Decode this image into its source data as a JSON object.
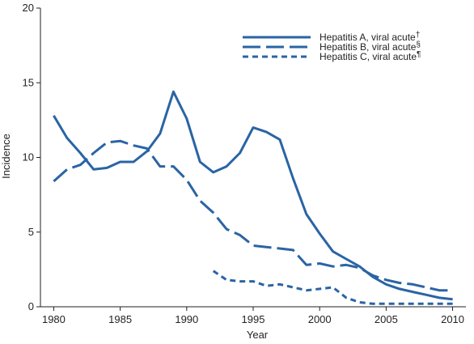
{
  "chart_data": {
    "type": "line",
    "title": "",
    "xlabel": "Year",
    "ylabel": "Incidence",
    "xlim": [
      1979,
      2011
    ],
    "ylim": [
      0,
      20
    ],
    "x_ticks": [
      1980,
      1985,
      1990,
      1995,
      2000,
      2005,
      2010
    ],
    "y_ticks": [
      0,
      5,
      10,
      15,
      20
    ],
    "grid": false,
    "legend_position": "top-right",
    "line_color": "#2a64a4",
    "axis_color": "#231f20",
    "series": [
      {
        "name": "Hepatitis A, viral acute",
        "marker": "†",
        "style": "solid",
        "x": [
          1980,
          1981,
          1982,
          1983,
          1984,
          1985,
          1986,
          1987,
          1988,
          1989,
          1990,
          1991,
          1992,
          1993,
          1994,
          1995,
          1996,
          1997,
          1998,
          1999,
          2000,
          2001,
          2002,
          2003,
          2004,
          2005,
          2006,
          2007,
          2008,
          2009,
          2010
        ],
        "values": [
          12.8,
          11.3,
          10.3,
          9.2,
          9.3,
          9.7,
          9.7,
          10.4,
          11.6,
          14.4,
          12.6,
          9.7,
          9.0,
          9.4,
          10.3,
          12.0,
          11.7,
          11.2,
          8.6,
          6.2,
          4.9,
          3.7,
          3.2,
          2.7,
          2.0,
          1.5,
          1.2,
          1.0,
          0.8,
          0.6,
          0.5
        ]
      },
      {
        "name": "Hepatitis B, viral acute",
        "marker": "§",
        "style": "long-dash",
        "x": [
          1980,
          1981,
          1982,
          1983,
          1984,
          1985,
          1986,
          1987,
          1988,
          1989,
          1990,
          1991,
          1992,
          1993,
          1994,
          1995,
          1996,
          1997,
          1998,
          1999,
          2000,
          2001,
          2002,
          2003,
          2004,
          2005,
          2006,
          2007,
          2008,
          2009,
          2010
        ],
        "values": [
          8.4,
          9.2,
          9.5,
          10.3,
          11.0,
          11.1,
          10.8,
          10.6,
          9.4,
          9.4,
          8.5,
          7.1,
          6.3,
          5.2,
          4.8,
          4.1,
          4.0,
          3.9,
          3.8,
          2.8,
          2.9,
          2.7,
          2.8,
          2.6,
          2.1,
          1.8,
          1.6,
          1.5,
          1.3,
          1.1,
          1.1
        ]
      },
      {
        "name": "Hepatitis C, viral acute",
        "marker": "¶",
        "style": "short-dash",
        "x": [
          1992,
          1993,
          1994,
          1995,
          1996,
          1997,
          1998,
          1999,
          2000,
          2001,
          2002,
          2003,
          2004,
          2005,
          2006,
          2007,
          2008,
          2009,
          2010
        ],
        "values": [
          2.4,
          1.8,
          1.7,
          1.7,
          1.4,
          1.5,
          1.3,
          1.1,
          1.2,
          1.3,
          0.6,
          0.3,
          0.2,
          0.2,
          0.2,
          0.2,
          0.2,
          0.2,
          0.2
        ]
      }
    ]
  }
}
